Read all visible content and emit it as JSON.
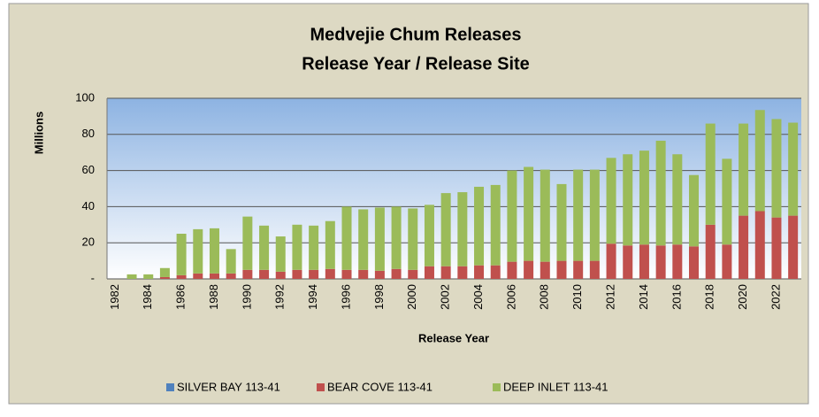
{
  "chart_data": {
    "type": "stacked_bar",
    "title": "Medvejie Chum Releases",
    "subtitle": "Release Year / Release Site",
    "y_label": "Millions",
    "x_label": "Release Year",
    "categories": [
      "1982",
      null,
      "1984",
      null,
      "1986",
      null,
      "1988",
      null,
      "1990",
      null,
      "1992",
      null,
      "1994",
      null,
      "1996",
      null,
      "1998",
      null,
      "2000",
      null,
      "2002",
      null,
      "2004",
      null,
      "2006",
      null,
      "2008",
      null,
      "2010",
      null,
      "2012",
      null,
      "2014",
      null,
      "2016",
      null,
      "2018",
      null,
      "2020",
      null,
      "2022",
      null
    ],
    "series": [
      {
        "name": "SILVER BAY 113-41",
        "color": "#4f81bd",
        "values": [
          0,
          0,
          0,
          0,
          0,
          0,
          0,
          0,
          0,
          0,
          0,
          0,
          0,
          0,
          0,
          0,
          0,
          0,
          0,
          0,
          0,
          0,
          0,
          0,
          0,
          0,
          0,
          0,
          0,
          0,
          0,
          0,
          0,
          0,
          0,
          0,
          0,
          0,
          0,
          0,
          0,
          0
        ]
      },
      {
        "name": "BEAR COVE 113-41",
        "color": "#c0504d",
        "values": [
          0,
          0,
          0,
          1,
          2,
          3,
          3,
          3,
          5,
          5,
          4,
          5,
          5,
          5.5,
          5,
          5,
          4.5,
          5.5,
          5,
          7,
          7,
          7,
          7.5,
          7.5,
          9.5,
          10,
          9.5,
          10,
          10,
          10,
          19.5,
          18.5,
          19,
          18.5,
          19,
          18,
          30,
          19,
          35,
          37.5,
          34,
          35
        ]
      },
      {
        "name": "DEEP INLET 113-41",
        "color": "#9bbb59",
        "values": [
          0,
          2.5,
          2.5,
          5,
          23,
          24.5,
          25,
          13.5,
          29.5,
          24.5,
          19.5,
          25,
          24.5,
          26.5,
          35,
          33.5,
          35,
          34.5,
          34,
          34,
          40.5,
          41,
          43.5,
          44.5,
          50.5,
          52,
          51,
          42.5,
          50.5,
          50.5,
          47.5,
          50.5,
          52,
          58,
          50,
          39.5,
          56,
          47.5,
          51,
          56,
          54.5,
          51.5
        ]
      }
    ],
    "ylim": [
      0,
      100
    ],
    "yticks": [
      {
        "value": 0,
        "label": "-"
      },
      20,
      40,
      60,
      80,
      100
    ],
    "grid": true,
    "legend": "bottom"
  }
}
